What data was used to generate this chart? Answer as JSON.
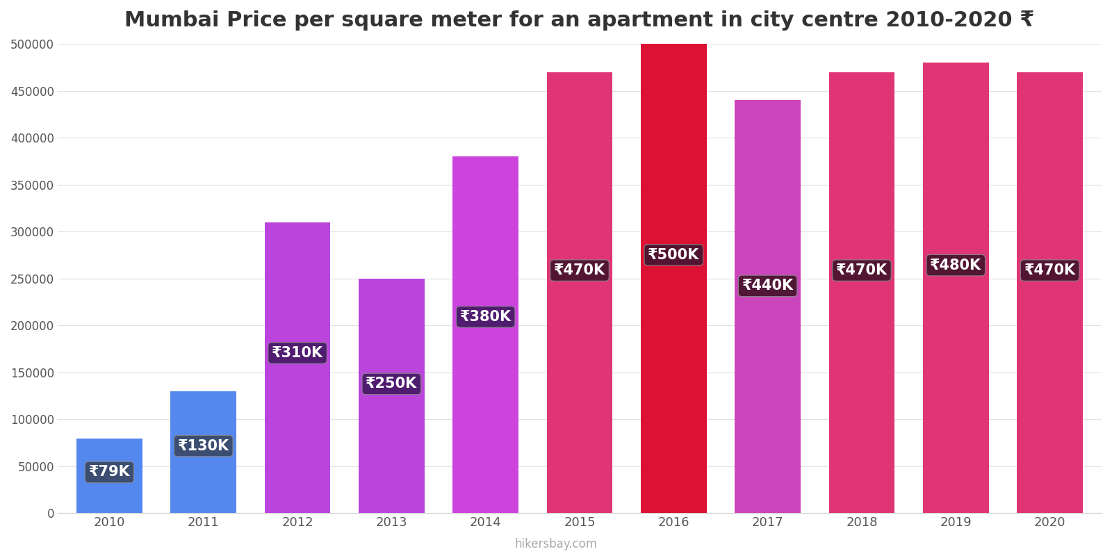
{
  "years": [
    2010,
    2011,
    2012,
    2013,
    2014,
    2015,
    2016,
    2017,
    2018,
    2019,
    2020
  ],
  "values": [
    79000,
    130000,
    310000,
    250000,
    380000,
    470000,
    500000,
    440000,
    470000,
    480000,
    470000
  ],
  "labels": [
    "₹79K",
    "₹130K",
    "₹310K",
    "₹250K",
    "₹380K",
    "₹470K",
    "₹500K",
    "₹440K",
    "₹470K",
    "₹480K",
    "₹470K"
  ],
  "bar_colors": [
    "#5588ee",
    "#5588ee",
    "#bb44dd",
    "#bb44dd",
    "#cc44dd",
    "#e03575",
    "#dd1133",
    "#cc44bb",
    "#e03575",
    "#e03575",
    "#e03575"
  ],
  "title": "Mumbai Price per square meter for an apartment in city centre 2010-2020 ₹",
  "ylim": [
    0,
    500000
  ],
  "yticks": [
    0,
    50000,
    100000,
    150000,
    200000,
    250000,
    300000,
    350000,
    400000,
    450000,
    500000
  ],
  "ytick_labels": [
    "0",
    "50000",
    "100000",
    "150000",
    "200000",
    "250000",
    "300000",
    "350000",
    "400000",
    "450000",
    "500000"
  ],
  "background_color": "#ffffff",
  "label_bg_2010_2011": "#3a4a6a",
  "label_bg_2012_2014": "#4a1a6a",
  "label_bg_2015_2020": "#4a1530",
  "watermark": "hikersbay.com",
  "title_fontsize": 22,
  "bar_width": 0.7
}
